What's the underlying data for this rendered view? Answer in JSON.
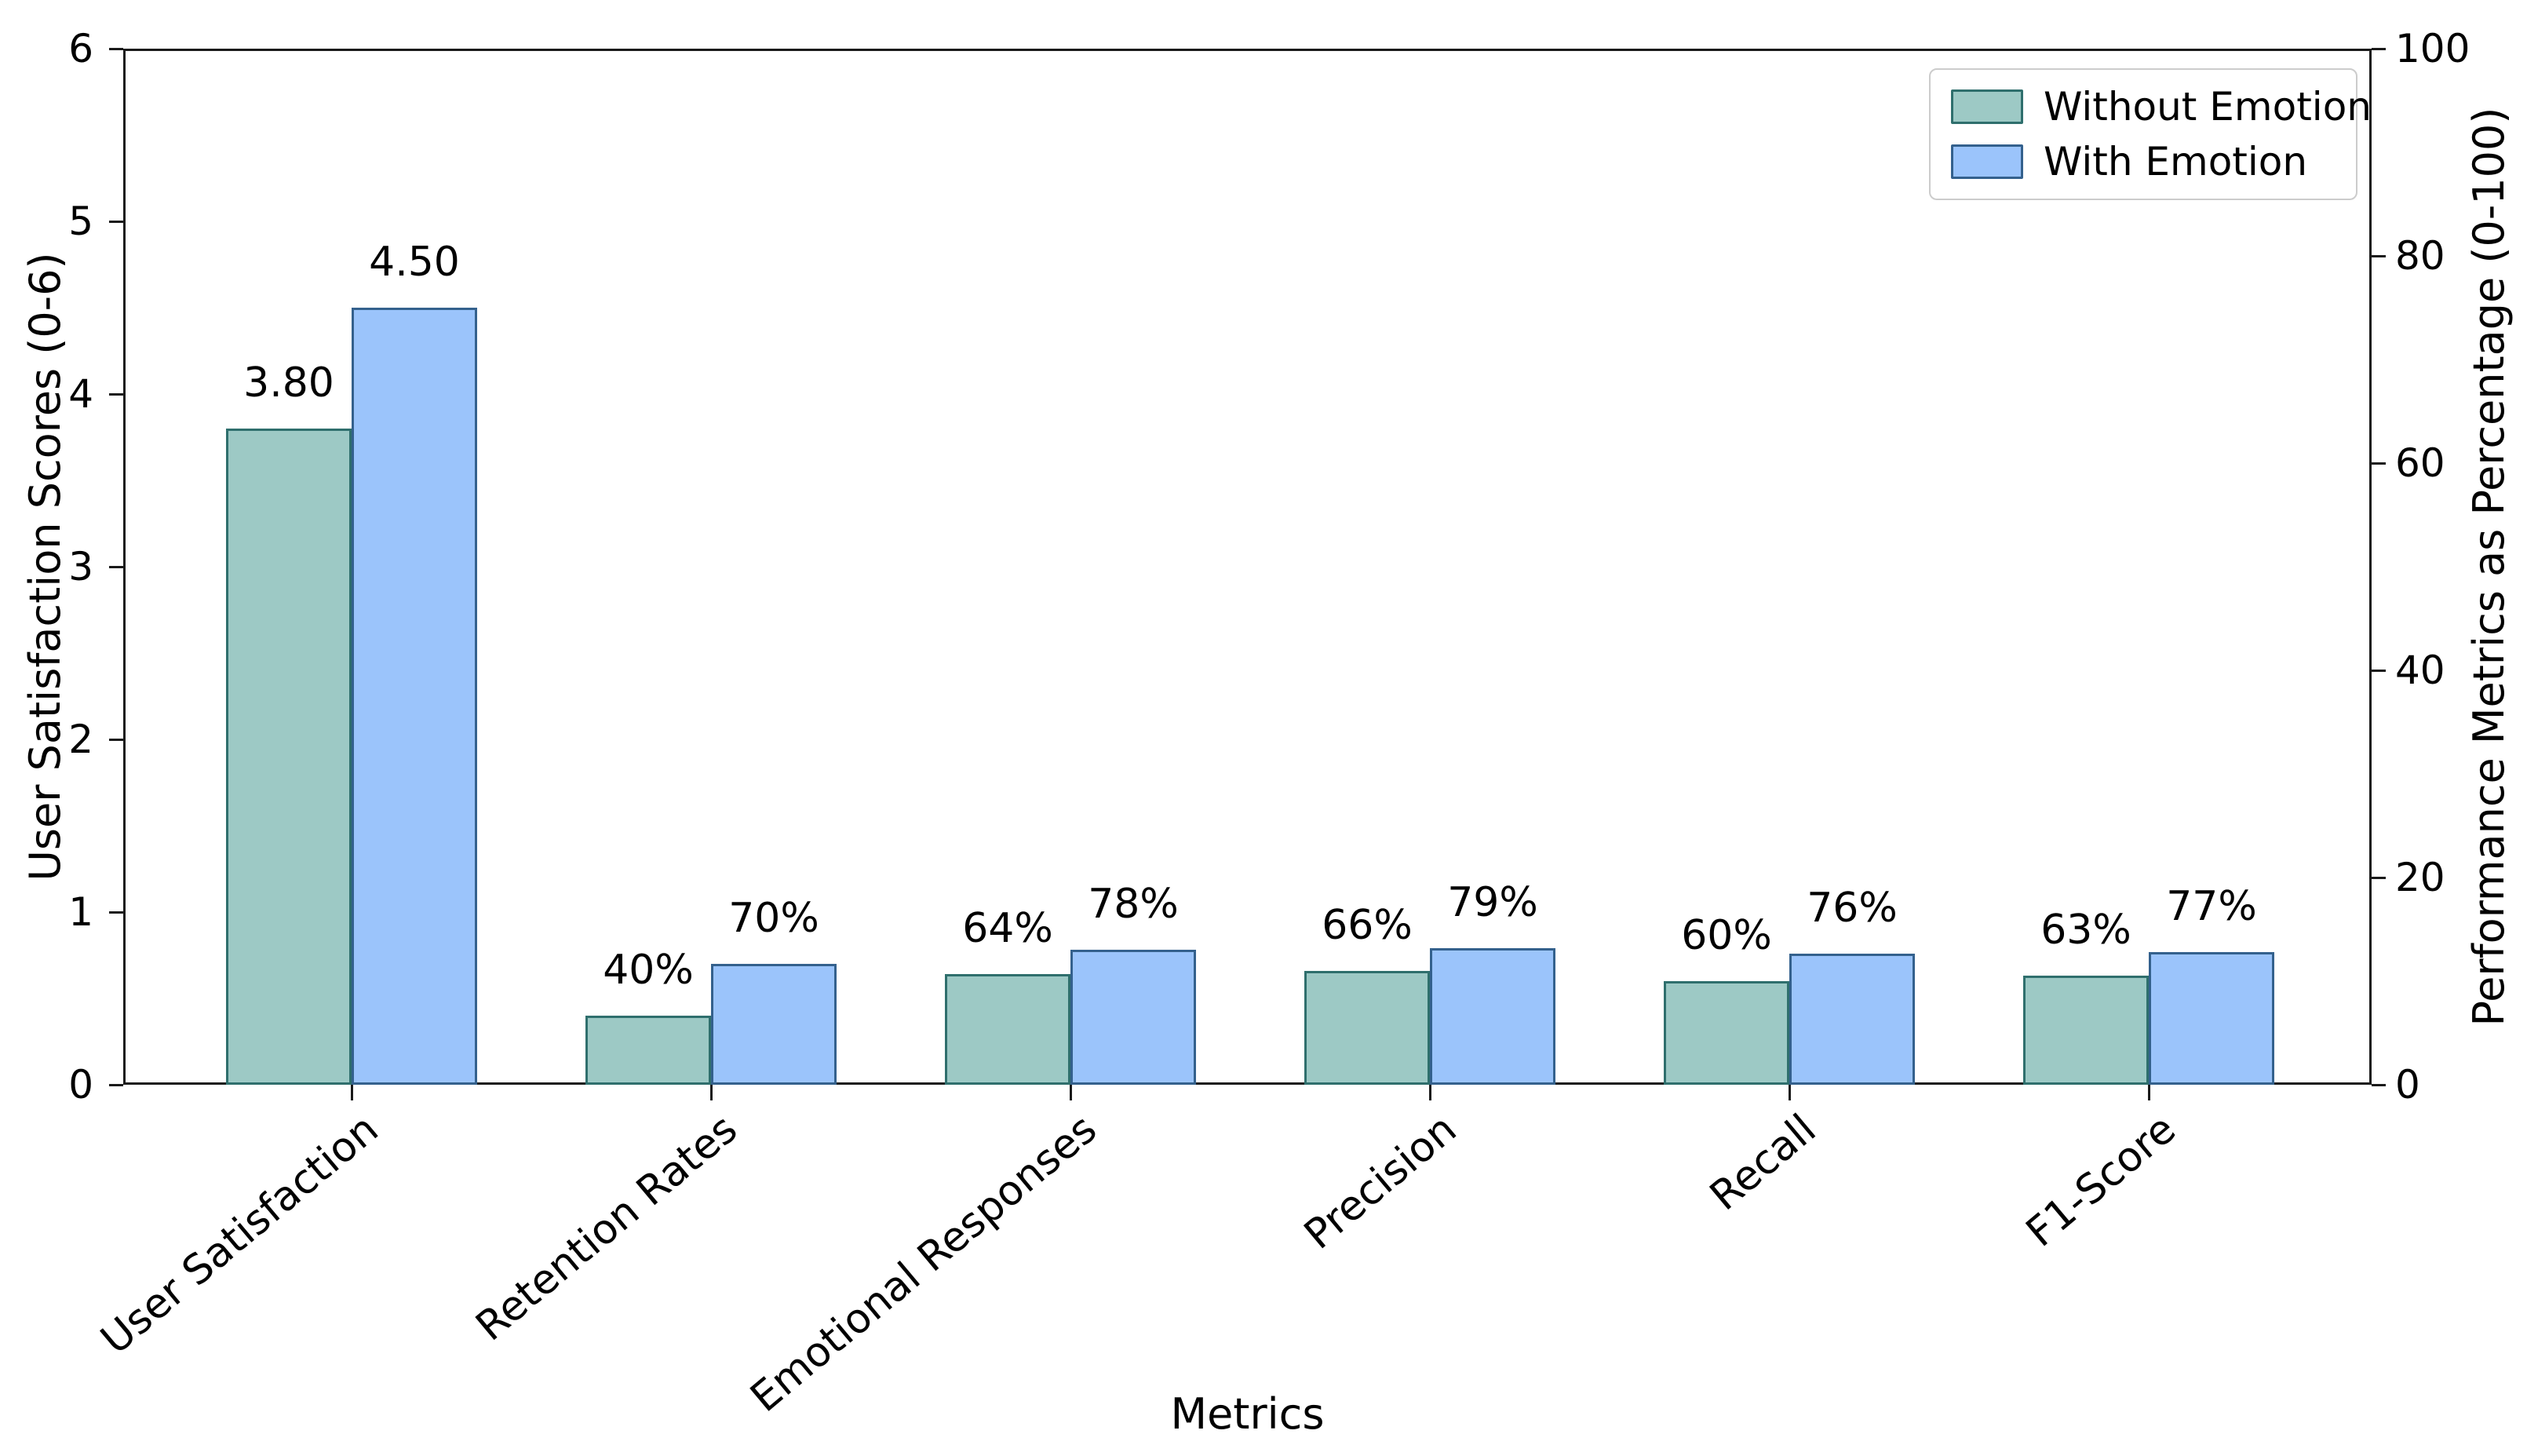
{
  "figure": {
    "background": "#ffffff",
    "axis_color": "#1a1a1a",
    "text_color": "#000000"
  },
  "chart_data": {
    "type": "bar",
    "title": "",
    "xlabel": "Metrics",
    "ylabel_left": "User Satisfaction Scores (0-6)",
    "ylabel_right": "Performance Metrics as Percentage (0-100)",
    "ylim_left": [
      0,
      6
    ],
    "ylim_right": [
      0,
      100
    ],
    "yticks_left": [
      "0",
      "1",
      "2",
      "3",
      "4",
      "5",
      "6"
    ],
    "yticks_right": [
      "0",
      "20",
      "40",
      "60",
      "80",
      "100"
    ],
    "categories": [
      "User Satisfaction",
      "Retention Rates",
      "Emotional Responses",
      "Precision",
      "Recall",
      "F1-Score"
    ],
    "series": [
      {
        "name": "Without Emotion",
        "fill": "#9dc9c5",
        "edge": "#2f6f6d",
        "values": [
          3.8,
          40,
          64,
          66,
          60,
          63
        ],
        "bar_labels": [
          "3.80",
          "40%",
          "64%",
          "66%",
          "60%",
          "63%"
        ]
      },
      {
        "name": "With Emotion",
        "fill": "#9bc4fb",
        "edge": "#34618d",
        "values": [
          4.5,
          70,
          78,
          79,
          76,
          77
        ],
        "bar_labels": [
          "4.50",
          "70%",
          "78%",
          "79%",
          "76%",
          "77%"
        ]
      }
    ],
    "legend": {
      "position": "upper right",
      "entries": [
        "Without Emotion",
        "With Emotion"
      ]
    },
    "grid": false,
    "note_bar_scale": "percentage bars drawn as value/100 on left axis"
  }
}
